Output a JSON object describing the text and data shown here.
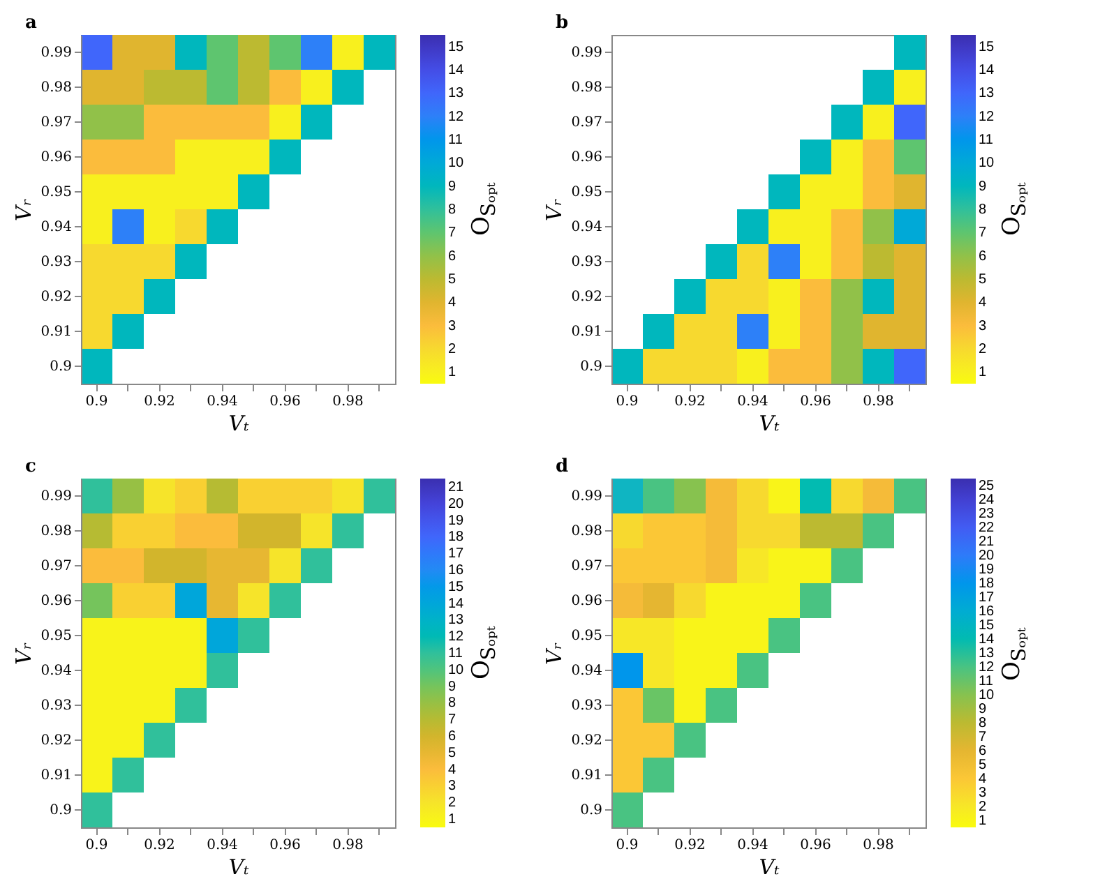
{
  "chart_data": [
    {
      "type": "heatmap",
      "title": "a",
      "xlabel": "Vₜ",
      "ylabel": "Vᵣ",
      "clabel": "O$_{Sₒₚₜ}$",
      "categories": [
        "0.9",
        null,
        "0.92",
        null,
        "0.94",
        null,
        "0.96",
        null,
        "0.98",
        null
      ],
      "y_categories": [
        "0.99",
        "0.98",
        "0.97",
        "0.96",
        "0.95",
        "0.94",
        "0.93",
        "0.92",
        "0.91",
        "0.9"
      ],
      "clim": [
        0.5,
        15.5
      ],
      "cticks": [
        1,
        2,
        3,
        4,
        5,
        6,
        7,
        8,
        9,
        10,
        11,
        12,
        13,
        14,
        15
      ],
      "cells": [
        [
          13,
          4,
          4,
          9,
          7,
          5,
          7,
          12,
          1,
          9
        ],
        [
          4,
          4,
          5,
          5,
          7,
          5,
          3,
          1,
          9,
          null
        ],
        [
          6,
          6,
          3,
          3,
          3,
          3,
          1,
          9,
          null,
          null
        ],
        [
          3,
          3,
          3,
          1,
          1,
          1,
          9,
          null,
          null,
          null
        ],
        [
          1,
          1,
          1,
          1,
          1,
          9,
          null,
          null,
          null,
          null
        ],
        [
          1,
          12,
          1,
          2,
          9,
          null,
          null,
          null,
          null,
          null
        ],
        [
          2,
          2,
          2,
          9,
          null,
          null,
          null,
          null,
          null,
          null
        ],
        [
          2,
          2,
          9,
          null,
          null,
          null,
          null,
          null,
          null,
          null
        ],
        [
          2,
          9,
          null,
          null,
          null,
          null,
          null,
          null,
          null,
          null
        ],
        [
          9,
          null,
          null,
          null,
          null,
          null,
          null,
          null,
          null,
          null
        ]
      ]
    },
    {
      "type": "heatmap",
      "title": "b",
      "xlabel": "Vₜ",
      "ylabel": "Vᵣ",
      "clabel": "O$_{Sₒₚₜ}$",
      "categories": [
        "0.9",
        null,
        "0.92",
        null,
        "0.94",
        null,
        "0.96",
        null,
        "0.98",
        null
      ],
      "y_categories": [
        "0.99",
        "0.98",
        "0.97",
        "0.96",
        "0.95",
        "0.94",
        "0.93",
        "0.92",
        "0.91",
        "0.9"
      ],
      "clim": [
        0.5,
        15.5
      ],
      "cticks": [
        1,
        2,
        3,
        4,
        5,
        6,
        7,
        8,
        9,
        10,
        11,
        12,
        13,
        14,
        15
      ],
      "cells": [
        [
          null,
          null,
          null,
          null,
          null,
          null,
          null,
          null,
          null,
          9
        ],
        [
          null,
          null,
          null,
          null,
          null,
          null,
          null,
          null,
          9,
          1
        ],
        [
          null,
          null,
          null,
          null,
          null,
          null,
          null,
          9,
          1,
          13
        ],
        [
          null,
          null,
          null,
          null,
          null,
          null,
          9,
          1,
          3,
          7
        ],
        [
          null,
          null,
          null,
          null,
          null,
          9,
          1,
          1,
          3,
          4
        ],
        [
          null,
          null,
          null,
          null,
          9,
          1,
          1,
          3,
          6,
          10
        ],
        [
          null,
          null,
          null,
          9,
          2,
          12,
          1,
          3,
          5,
          4
        ],
        [
          null,
          null,
          9,
          2,
          2,
          1,
          3,
          6,
          9,
          4
        ],
        [
          null,
          9,
          2,
          2,
          12,
          1,
          3,
          6,
          4,
          4
        ],
        [
          9,
          2,
          2,
          2,
          1,
          3,
          3,
          6,
          9,
          13
        ]
      ]
    },
    {
      "type": "heatmap",
      "title": "c",
      "xlabel": "Vₜ",
      "ylabel": "Vᵣ",
      "clabel": "O$_{Sₒₚₜ}$",
      "categories": [
        "0.9",
        null,
        "0.92",
        null,
        "0.94",
        null,
        "0.96",
        null,
        "0.98",
        null
      ],
      "y_categories": [
        "0.99",
        "0.98",
        "0.97",
        "0.96",
        "0.95",
        "0.94",
        "0.93",
        "0.92",
        "0.91",
        "0.9"
      ],
      "clim": [
        0.5,
        21.5
      ],
      "cticks": [
        1,
        2,
        3,
        4,
        5,
        6,
        7,
        8,
        9,
        10,
        11,
        12,
        13,
        14,
        15,
        16,
        17,
        18,
        19,
        20,
        21
      ],
      "cells": [
        [
          11,
          8,
          2,
          3,
          7,
          3,
          3,
          3,
          2,
          11
        ],
        [
          7,
          3,
          3,
          4,
          4,
          6,
          6,
          2,
          11,
          null
        ],
        [
          4,
          4,
          6,
          6,
          5,
          5,
          2,
          11,
          null,
          null
        ],
        [
          9,
          3,
          3,
          14,
          5,
          2,
          11,
          null,
          null,
          null
        ],
        [
          1,
          1,
          1,
          1,
          14,
          11,
          null,
          null,
          null,
          null
        ],
        [
          1,
          1,
          1,
          1,
          11,
          null,
          null,
          null,
          null,
          null
        ],
        [
          1,
          1,
          1,
          11,
          null,
          null,
          null,
          null,
          null,
          null
        ],
        [
          1,
          1,
          11,
          null,
          null,
          null,
          null,
          null,
          null,
          null
        ],
        [
          1,
          11,
          null,
          null,
          null,
          null,
          null,
          null,
          null,
          null
        ],
        [
          11,
          null,
          null,
          null,
          null,
          null,
          null,
          null,
          null,
          null
        ]
      ]
    },
    {
      "type": "heatmap",
      "title": "d",
      "xlabel": "Vₜ",
      "ylabel": "Vᵣ",
      "clabel": "O$_{Sₒₚₜ}$",
      "categories": [
        "0.9",
        null,
        "0.92",
        null,
        "0.94",
        null,
        "0.96",
        null,
        "0.98",
        null
      ],
      "y_categories": [
        "0.99",
        "0.98",
        "0.97",
        "0.96",
        "0.95",
        "0.94",
        "0.93",
        "0.92",
        "0.91",
        "0.9"
      ],
      "clim": [
        0.5,
        25.5
      ],
      "cticks": [
        1,
        2,
        3,
        4,
        5,
        6,
        7,
        8,
        9,
        10,
        11,
        12,
        13,
        14,
        15,
        16,
        17,
        18,
        19,
        20,
        21,
        22,
        23,
        24,
        25
      ],
      "cells": [
        [
          15,
          12,
          10,
          5,
          3,
          1,
          14,
          3,
          5,
          12
        ],
        [
          3,
          4,
          4,
          5,
          3,
          3,
          8,
          8,
          12,
          null
        ],
        [
          4,
          4,
          4,
          5,
          2,
          1,
          1,
          12,
          null,
          null
        ],
        [
          5,
          6,
          3,
          1,
          1,
          1,
          12,
          null,
          null,
          null
        ],
        [
          2,
          2,
          1,
          1,
          1,
          12,
          null,
          null,
          null,
          null
        ],
        [
          18,
          2,
          1,
          1,
          12,
          null,
          null,
          null,
          null,
          null
        ],
        [
          4,
          11,
          1,
          12,
          null,
          null,
          null,
          null,
          null,
          null
        ],
        [
          4,
          4,
          12,
          null,
          null,
          null,
          null,
          null,
          null,
          null
        ],
        [
          4,
          12,
          null,
          null,
          null,
          null,
          null,
          null,
          null,
          null
        ],
        [
          12,
          null,
          null,
          null,
          null,
          null,
          null,
          null,
          null,
          null
        ]
      ]
    }
  ]
}
